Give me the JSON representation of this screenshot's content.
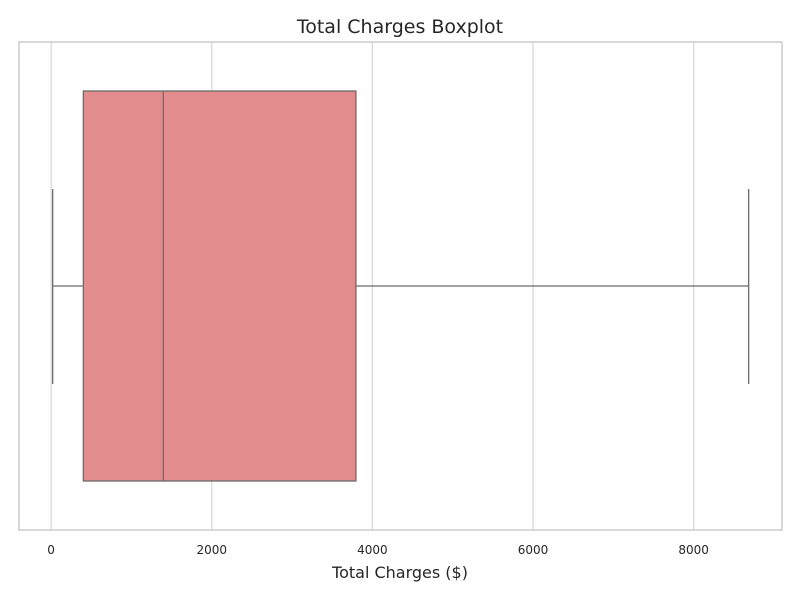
{
  "chart_data": {
    "type": "boxplot",
    "title": "Total Charges Boxplot",
    "xlabel": "Total Charges ($)",
    "ylabel": "",
    "orientation": "horizontal",
    "xlim": [
      -400,
      9100
    ],
    "xticks": [
      0,
      2000,
      4000,
      6000,
      8000
    ],
    "grid": true,
    "box": {
      "whisker_low": 19,
      "q1": 401,
      "median": 1397,
      "q3": 3795,
      "whisker_high": 8685
    },
    "colors": {
      "box_fill": "#e38c8e",
      "box_edge": "#6b6b6b",
      "grid": "#d9d9d9",
      "frame": "#cccccc",
      "text": "#262626"
    }
  }
}
